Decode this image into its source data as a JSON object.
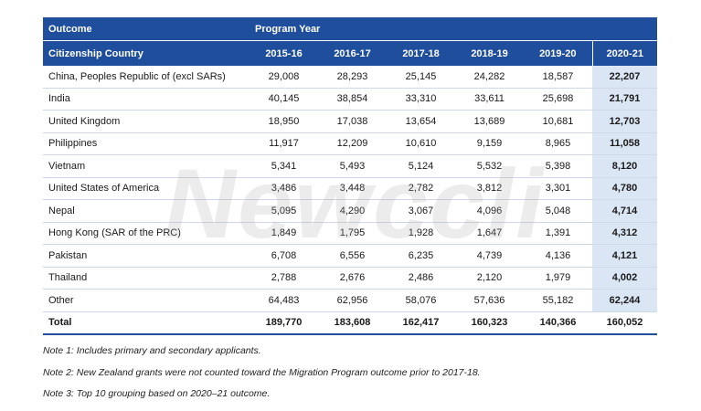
{
  "watermark": "Newccli",
  "table": {
    "header_row1": {
      "col1": "Outcome",
      "col2": "Program Year"
    },
    "header_row2": {
      "col1": "Citizenship Country",
      "years": [
        "2015-16",
        "2016-17",
        "2017-18",
        "2018-19",
        "2019-20",
        "2020-21"
      ]
    },
    "rows": [
      {
        "country": "China, Peoples Republic of (excl SARs)",
        "values": [
          "29,008",
          "28,293",
          "25,145",
          "24,282",
          "18,587",
          "22,207"
        ]
      },
      {
        "country": "India",
        "values": [
          "40,145",
          "38,854",
          "33,310",
          "33,611",
          "25,698",
          "21,791"
        ]
      },
      {
        "country": "United Kingdom",
        "values": [
          "18,950",
          "17,038",
          "13,654",
          "13,689",
          "10,681",
          "12,703"
        ]
      },
      {
        "country": "Philippines",
        "values": [
          "11,917",
          "12,209",
          "10,610",
          "9,159",
          "8,965",
          "11,058"
        ]
      },
      {
        "country": "Vietnam",
        "values": [
          "5,341",
          "5,493",
          "5,124",
          "5,532",
          "5,398",
          "8,120"
        ]
      },
      {
        "country": "United States of America",
        "values": [
          "3,486",
          "3,448",
          "2,782",
          "3,812",
          "3,301",
          "4,780"
        ]
      },
      {
        "country": "Nepal",
        "values": [
          "5,095",
          "4,290",
          "3,067",
          "4,096",
          "5,048",
          "4,714"
        ]
      },
      {
        "country": "Hong Kong (SAR of the PRC)",
        "values": [
          "1,849",
          "1,795",
          "1,928",
          "1,647",
          "1,391",
          "4,312"
        ]
      },
      {
        "country": "Pakistan",
        "values": [
          "6,708",
          "6,556",
          "6,235",
          "4,739",
          "4,136",
          "4,121"
        ]
      },
      {
        "country": "Thailand",
        "values": [
          "2,788",
          "2,676",
          "2,486",
          "2,120",
          "1,979",
          "4,002"
        ]
      },
      {
        "country": "Other",
        "values": [
          "64,483",
          "62,956",
          "58,076",
          "57,636",
          "55,182",
          "62,244"
        ]
      }
    ],
    "total": {
      "country": "Total",
      "values": [
        "189,770",
        "183,608",
        "162,417",
        "160,323",
        "140,366",
        "160,052"
      ]
    }
  },
  "notes": [
    "Note 1: Includes primary and secondary applicants.",
    "Note 2: New Zealand grants were not counted toward the Migration Program outcome prior to 2017-18.",
    "Note 3: Top 10 grouping based on 2020–21 outcome."
  ],
  "colors": {
    "header_bg": "#1f4e9c",
    "highlight_bg": "#dbe6f5",
    "row_border": "#cfd8e6"
  }
}
